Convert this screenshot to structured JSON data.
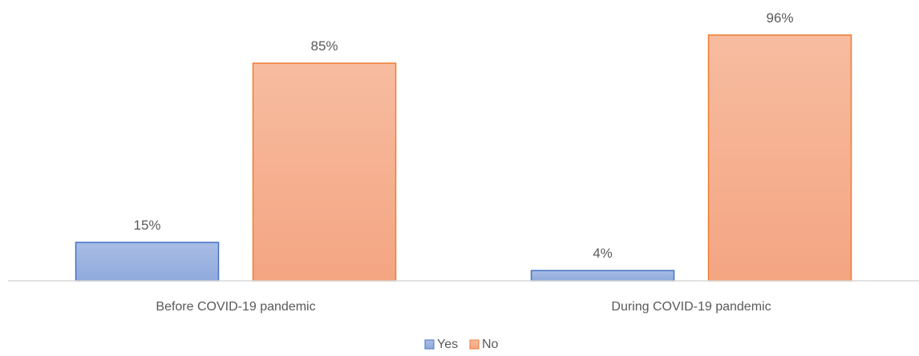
{
  "chart_data": {
    "type": "bar",
    "categories": [
      "Before COVID-19 pandemic",
      "During COVID-19 pandemic"
    ],
    "series": [
      {
        "name": "Yes",
        "values": [
          15,
          4
        ],
        "labels": [
          "15%",
          "4%"
        ],
        "color": "#8faadc",
        "color_light": "#a9bde6",
        "border": "#4472c4"
      },
      {
        "name": "No",
        "values": [
          85,
          96
        ],
        "labels": [
          "85%",
          "96%"
        ],
        "color": "#f4a582",
        "color_light": "#f7bca0",
        "border": "#ed7d31"
      }
    ],
    "ylim": [
      0,
      100
    ],
    "unit": "%",
    "grid": false,
    "legend": "bottom-center",
    "title": "",
    "xlabel": "",
    "ylabel": ""
  }
}
